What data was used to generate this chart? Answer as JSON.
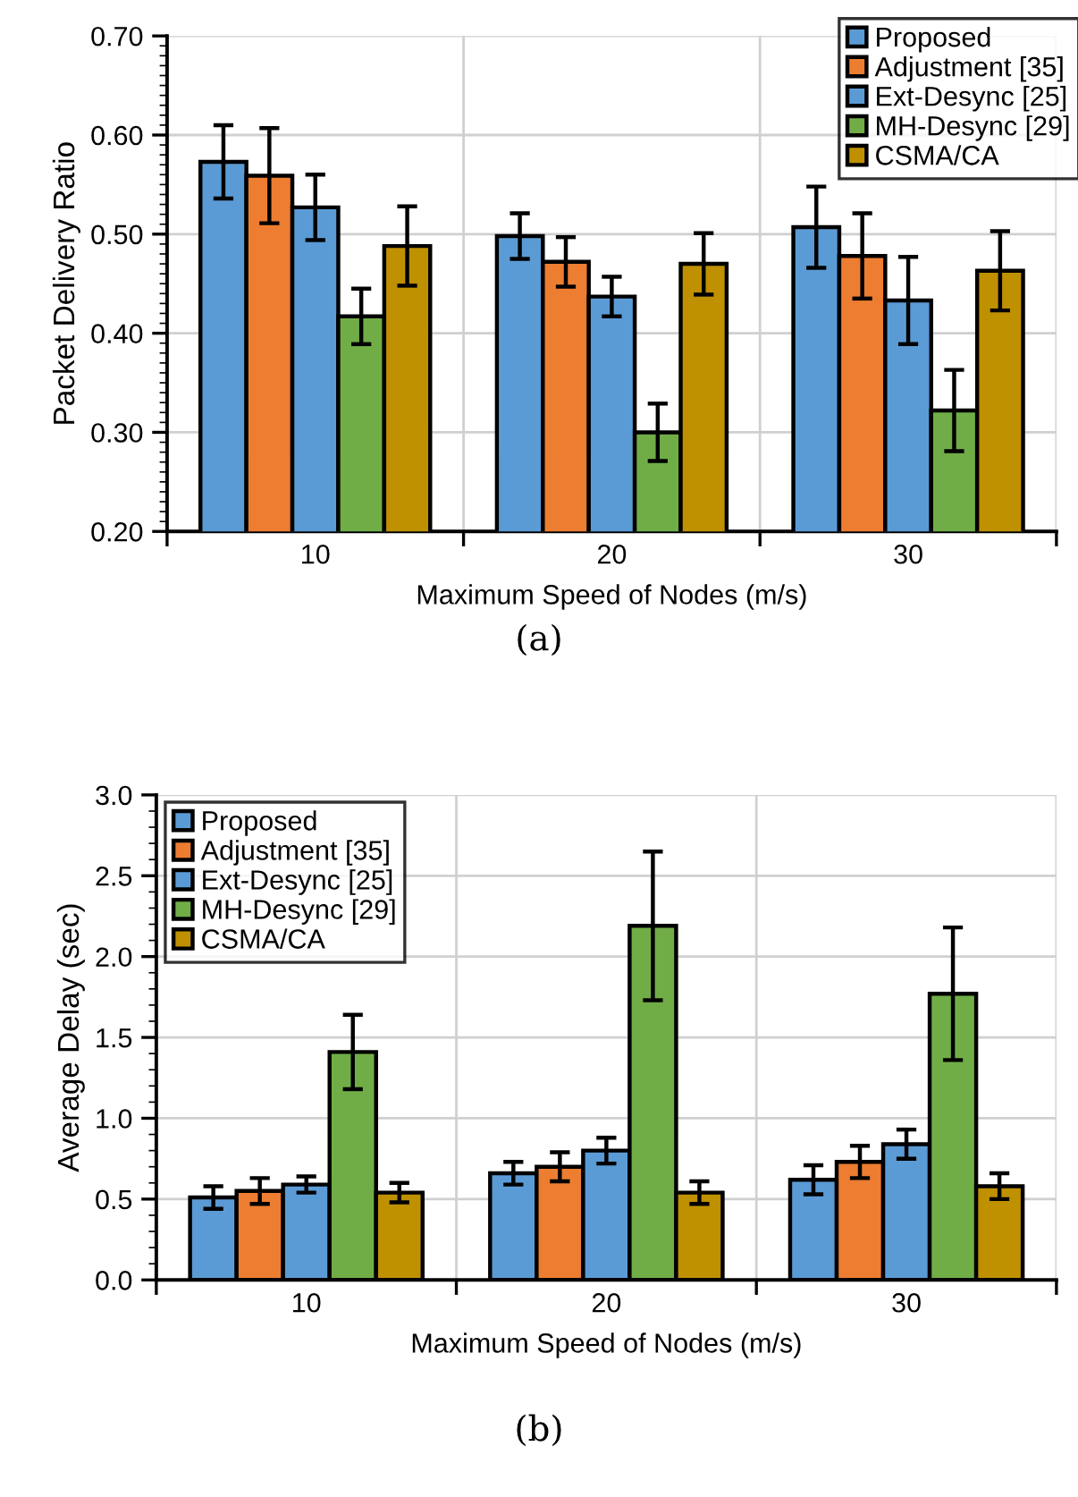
{
  "chart_data": [
    {
      "type": "bar",
      "categories": [
        "10",
        "20",
        "30"
      ],
      "xlabel": "Maximum Speed of Nodes (m/s)",
      "ylabel": "Packet Delivery Ratio",
      "ylim": [
        0.2,
        0.7
      ],
      "yticks": [
        {
          "value": 0.2,
          "label": "0.20"
        },
        {
          "value": 0.3,
          "label": "0.30"
        },
        {
          "value": 0.4,
          "label": "0.40"
        },
        {
          "value": 0.5,
          "label": "0.50"
        },
        {
          "value": 0.6,
          "label": "0.60"
        },
        {
          "value": 0.7,
          "label": "0.70"
        }
      ],
      "grid": true,
      "legend": "top right",
      "annotations": [
        "(a)"
      ],
      "series": [
        {
          "name": "Proposed",
          "color": "#5b9bd5",
          "values": [
            0.573,
            0.498,
            0.507
          ],
          "errors": [
            0.037,
            0.023,
            0.041
          ]
        },
        {
          "name": "Adjustment [35]",
          "color": "#ed7d31",
          "values": [
            0.559,
            0.472,
            0.478
          ],
          "errors": [
            0.048,
            0.025,
            0.043
          ]
        },
        {
          "name": "Ext-Desync [25]",
          "color": "#5b9bd5",
          "values": [
            0.527,
            0.437,
            0.433
          ],
          "errors": [
            0.033,
            0.02,
            0.044
          ]
        },
        {
          "name": "MH-Desync [29]",
          "color": "#70ad47",
          "values": [
            0.417,
            0.3,
            0.322
          ],
          "errors": [
            0.028,
            0.029,
            0.041
          ]
        },
        {
          "name": "CSMA/CA",
          "color": "#bf9000",
          "values": [
            0.488,
            0.47,
            0.463
          ],
          "errors": [
            0.04,
            0.031,
            0.04
          ]
        }
      ]
    },
    {
      "type": "bar",
      "categories": [
        "10",
        "20",
        "30"
      ],
      "xlabel": "Maximum Speed of Nodes (m/s)",
      "ylabel": "Average Delay (sec)",
      "ylim": [
        0,
        3
      ],
      "yticks": [
        {
          "value": 0,
          "label": "0.0"
        },
        {
          "value": 0.5,
          "label": "0.5"
        },
        {
          "value": 1,
          "label": "1.0"
        },
        {
          "value": 1.5,
          "label": "1.5"
        },
        {
          "value": 2,
          "label": "2.0"
        },
        {
          "value": 2.5,
          "label": "2.5"
        },
        {
          "value": 3,
          "label": "3.0"
        }
      ],
      "grid": true,
      "legend": "top left",
      "annotations": [
        "(b)"
      ],
      "series": [
        {
          "name": "Proposed",
          "color": "#5b9bd5",
          "values": [
            0.51,
            0.66,
            0.62
          ],
          "errors": [
            0.07,
            0.07,
            0.09
          ]
        },
        {
          "name": "Adjustment [35]",
          "color": "#ed7d31",
          "values": [
            0.55,
            0.7,
            0.73
          ],
          "errors": [
            0.08,
            0.09,
            0.1
          ]
        },
        {
          "name": "Ext-Desync [25]",
          "color": "#5b9bd5",
          "values": [
            0.59,
            0.8,
            0.84
          ],
          "errors": [
            0.05,
            0.08,
            0.09
          ]
        },
        {
          "name": "MH-Desync [29]",
          "color": "#70ad47",
          "values": [
            1.41,
            2.19,
            1.77
          ],
          "errors": [
            0.23,
            0.46,
            0.41
          ]
        },
        {
          "name": "CSMA/CA",
          "color": "#bf9000",
          "values": [
            0.54,
            0.54,
            0.58
          ],
          "errors": [
            0.06,
            0.07,
            0.08
          ]
        }
      ]
    }
  ]
}
